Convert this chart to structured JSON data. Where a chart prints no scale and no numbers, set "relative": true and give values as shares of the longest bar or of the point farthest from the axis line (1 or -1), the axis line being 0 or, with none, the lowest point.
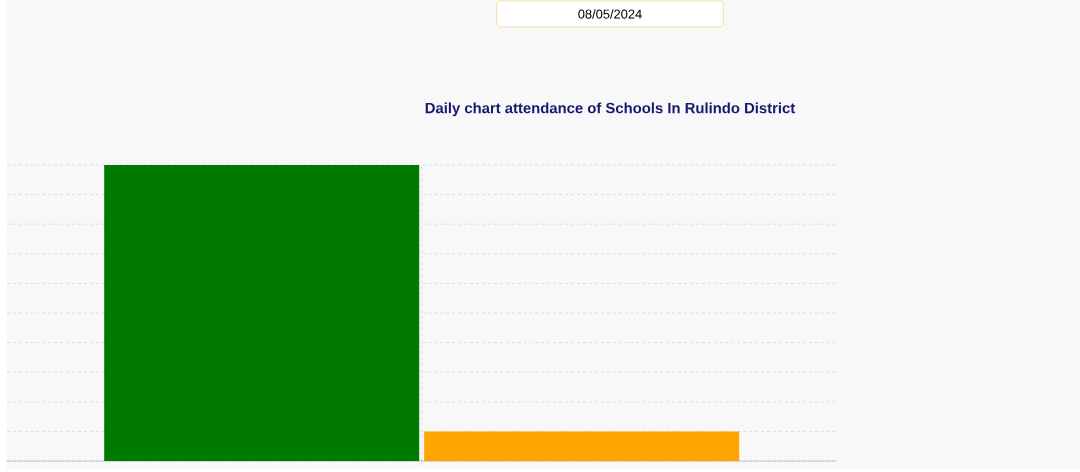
{
  "chart_data": {
    "type": "bar",
    "title": "Daily chart attendance of Schools In Rulindo District",
    "annotations": [
      "08/05/2024"
    ],
    "categories": [
      null
    ],
    "series": [
      {
        "color": "#007a00",
        "values": [
          1
        ]
      },
      {
        "color": "#ffa500",
        "values": [
          0.1
        ]
      }
    ],
    "relative": true,
    "grid": true
  }
}
